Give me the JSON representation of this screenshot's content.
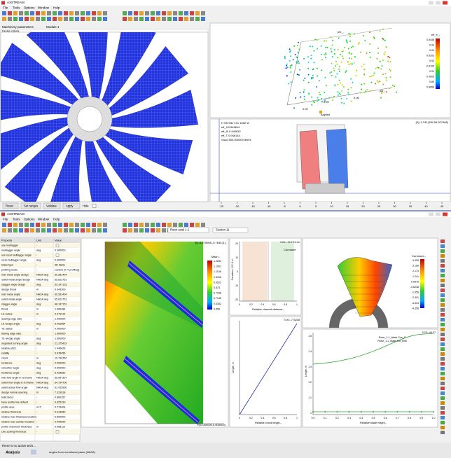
{
  "top": {
    "title": "AXSTREAM",
    "menu": [
      "File",
      "Tools",
      "Options",
      "Window",
      "Help"
    ],
    "tabs": [
      "Machinery parameters",
      "Module 1"
    ],
    "filter_label": "Design criteria",
    "buttons": [
      "Reset",
      "Set ranges",
      "Validate",
      "Apply"
    ],
    "hide_label": "Hide",
    "scatter": {
      "axes": [
        "phi_-",
        "psi_-",
        "eff_fl_-"
      ],
      "colorbar_title": "eff_fl_-",
      "colorbar": [
        "0.9446",
        "0.94",
        "0.93",
        "0.9203",
        "0.92",
        "0.9105",
        "0.91",
        "0.9003",
        "0.89",
        "0.8856"
      ],
      "labels": [
        "0.92",
        "0.99",
        "0.06",
        "Applied"
      ]
    },
    "profile": {
      "readout": "[X]:-2.511(155,55,527466)",
      "info": [
        "H 9373317.01 1652 W",
        "eff_fl 0.946614",
        "eff_t0 0.940832",
        "eff_T 0.946144",
        "Gsud 505.000000 lbm/s"
      ],
      "xticks": [
        "-25",
        "-20",
        "-15",
        "-10",
        "-5",
        "0",
        "5",
        "10",
        "15",
        "20",
        "25",
        "30",
        "35",
        "40",
        "45"
      ]
    }
  },
  "bottom": {
    "title": "AXSTREAM",
    "menu": [
      "File",
      "Tools",
      "Options",
      "Window",
      "Help"
    ],
    "rotor_select": "Rotor axial 1-1",
    "section_select": "Section 11",
    "table": {
      "header": [
        "Property",
        "Unit",
        "Value"
      ],
      "rows": [
        [
          "use multiagger",
          "-"
        ],
        [
          "multiagger angle",
          "deg",
          "0.000000"
        ],
        [
          "use local multiagger angle",
          "-"
        ],
        [
          "local multiagger angle",
          "deg",
          "0.000000"
        ],
        [
          "blade type",
          "-",
          "3D blade"
        ],
        [
          "profiling mode",
          "-",
          "custom (X-Y profiling)"
        ],
        [
          "inlet metal angle design",
          "NASA deg",
          "60.281404"
        ],
        [
          "outlet metal angle design",
          "NASA deg",
          "65.813751"
        ],
        [
          "stagger angle design",
          "deg",
          "53.197133"
        ],
        [
          "design throat",
          "m",
          "0.043300"
        ],
        [
          "inlet metal angle",
          "NASA deg",
          "60.281404"
        ],
        [
          "outlet metal angle",
          "NASA deg",
          "65.813751"
        ],
        [
          "stagger angle",
          "deg",
          "48.197151"
        ],
        [
          "throat",
          "m",
          "1.080484"
        ],
        [
          "LE radius",
          "m",
          "0.071314"
        ],
        [
          "leading edge ratio",
          "-",
          "1.000000"
        ],
        [
          "LE wedge angle",
          "deg",
          "5.402864"
        ],
        [
          "TE radius",
          "m",
          "0.000000"
        ],
        [
          "trailing edge ratio",
          "-",
          "1.000000"
        ],
        [
          "TE wedge angle",
          "deg",
          "1.000000"
        ],
        [
          "unguided turning angle",
          "deg",
          "21.375419"
        ],
        [
          "relative pitch",
          "-",
          "1.446428"
        ],
        [
          "solidity",
          "-",
          "0.678456"
        ],
        [
          "chord",
          "m",
          "19.732252"
        ],
        [
          "incidence",
          "deg",
          "0.000000"
        ],
        [
          "smoother angle",
          "deg",
          "0.000000"
        ],
        [
          "incidence angle",
          "deg",
          "5.420652"
        ],
        [
          "inlet flow angle in rel frame",
          "NASA deg",
          "55.907307"
        ],
        [
          "outlet flow angle in rel frame",
          "NASA deg",
          "64.734700"
        ],
        [
          "outlet actual flow angle",
          "NASA deg",
          "61.415930"
        ],
        [
          "design normal opening",
          "m",
          "7.331618"
        ],
        [
          "twist factor",
          "-",
          "0.860357"
        ],
        [
          "base profile line default",
          "-",
          "0.625330"
        ],
        [
          "profile area",
          "m^2",
          "0.279404"
        ],
        [
          "relative thickness",
          "-",
          "0.044080"
        ],
        [
          "relative max thickness location",
          "-",
          "0.500000"
        ],
        [
          "relative max camber location",
          "-",
          "0.499999"
        ],
        [
          "profile maximum thickness",
          "m",
          "0.068113"
        ],
        [
          "Use scaling thickness",
          "-"
        ]
      ]
    },
    "contour": {
      "readout": "[X]:-5.579008,-0.7645 [1]",
      "colorbar_title": "Mach,-",
      "colorbar": [
        "1.2694",
        "1.1901",
        "1.1108",
        "1.0316",
        "0.9523",
        "0.873",
        "0.7938",
        "0.7145",
        "0.6352",
        "0.556"
      ],
      "footer": "R(0.000000,0.000000)"
    },
    "curvature": {
      "readout": "0.01:-.11.0^10-3n",
      "title": "Curvature",
      "ylabel": "Curvature, 10^-3 m",
      "xlabel": "Relative channel distance,-",
      "xticks": [
        "0",
        "0.2",
        "0.4",
        "0.6",
        "0.8",
        "1"
      ],
      "yticks": [
        "20",
        "10",
        "0",
        "-10",
        "-20"
      ]
    },
    "chord": {
      "readout": "0.00:-.7.9(208",
      "ylabel": "Length, m",
      "xlabel": "Relative chord length,-",
      "xticks": [
        "0",
        "0.2",
        "0.4",
        "0.6",
        "0.8",
        "1"
      ]
    },
    "blade3d": {
      "colorbar_title": "Curvature,-",
      "colorbar": [
        "4.995",
        "3.180",
        "2.174",
        "1.241",
        "0.5976",
        "-0.6248",
        "-1.556",
        "-2.491",
        "-3.423",
        "-4.356"
      ]
    },
    "height": {
      "readout": "0.25:-.44.07",
      "legend": [
        "Rotor_1-1_blade Cos_C",
        "Rotor_1-1_stage trot_blist"
      ],
      "ylabel": "Length, m",
      "xlabel": "Relative blade height,-",
      "xticks": [
        "0.0",
        "0.1",
        "0.2",
        "0.3",
        "0.4",
        "0.5",
        "0.6",
        "0.7",
        "0.8",
        "0.9",
        "1.0"
      ],
      "yticks": [
        "1.5",
        "1.4",
        "1.3",
        "1.2",
        "1.1",
        "1"
      ]
    }
  },
  "status": {
    "message": "There is no active tech...",
    "mode": "Analysis",
    "note": "angles from meridional plane (NASA)"
  }
}
